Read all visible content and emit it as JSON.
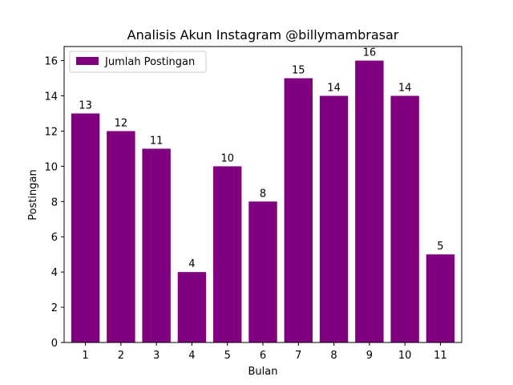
{
  "chart_data": {
    "type": "bar",
    "title": "Analisis Akun Instagram @billymambrasar",
    "xlabel": "Bulan",
    "ylabel": "Postingan",
    "categories": [
      "1",
      "2",
      "3",
      "4",
      "5",
      "6",
      "7",
      "8",
      "9",
      "10",
      "11"
    ],
    "series": [
      {
        "name": "Jumlah Postingan",
        "values": [
          13,
          12,
          11,
          4,
          10,
          8,
          15,
          14,
          16,
          14,
          5
        ]
      }
    ],
    "data_labels": [
      "13",
      "12",
      "11",
      "4",
      "10",
      "8",
      "15",
      "14",
      "16",
      "14",
      "5"
    ],
    "yticks": [
      0,
      2,
      4,
      6,
      8,
      10,
      12,
      14,
      16
    ],
    "ylim": [
      0,
      16.8
    ],
    "grid": false,
    "legend_position": "top-left",
    "bar_color": "#800080"
  }
}
